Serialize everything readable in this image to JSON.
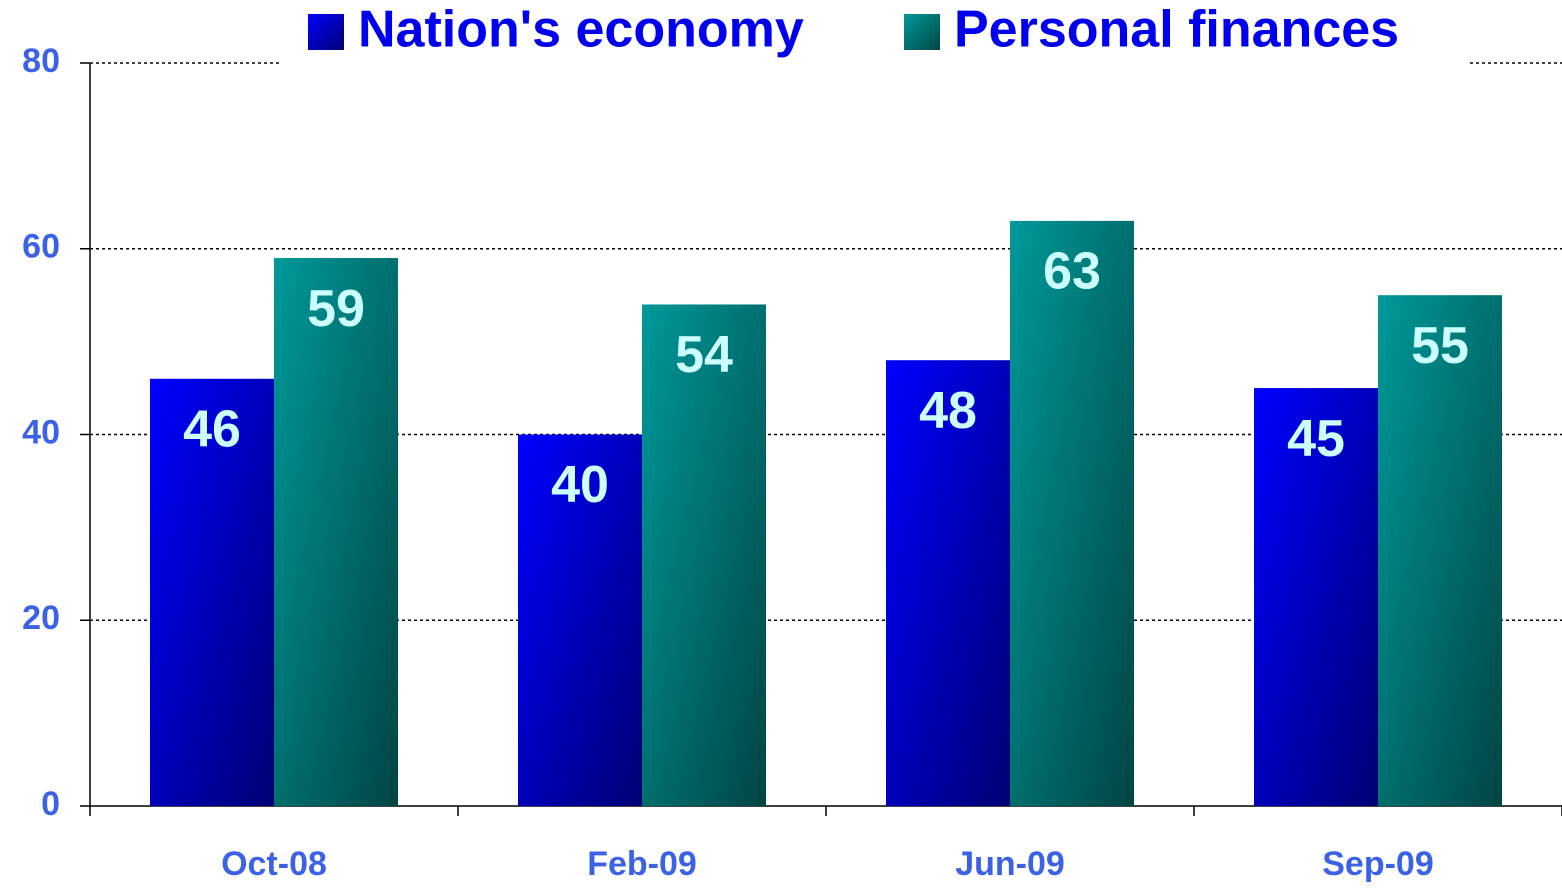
{
  "chart_data": {
    "type": "bar",
    "categories": [
      "Oct-08",
      "Feb-09",
      "Jun-09",
      "Sep-09"
    ],
    "series": [
      {
        "name": "Nation's economy",
        "color": "#0000ff",
        "values": [
          46,
          40,
          48,
          45
        ]
      },
      {
        "name": "Personal finances",
        "color": "#009999",
        "values": [
          59,
          54,
          63,
          55
        ]
      }
    ],
    "ylim": [
      0,
      80
    ],
    "yticks": [
      0,
      20,
      40,
      60,
      80
    ],
    "grid": true,
    "legend": "top"
  }
}
